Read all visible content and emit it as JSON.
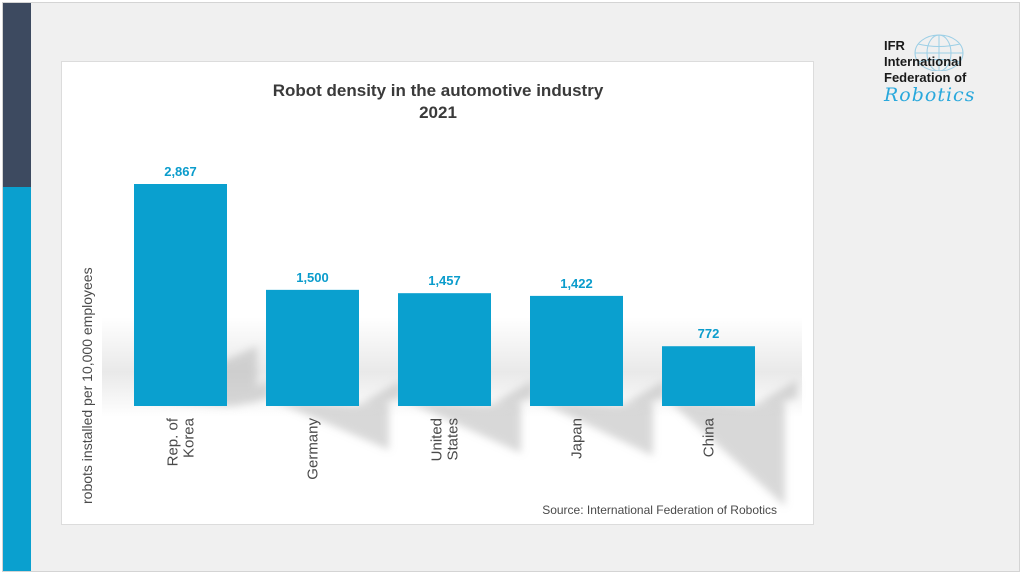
{
  "logo": {
    "abbr": "IFR",
    "line1": "International",
    "line2": "Federation of",
    "script": "Robotics"
  },
  "chart_data": {
    "type": "bar",
    "title": "Robot density in the automotive industry",
    "subtitle": "2021",
    "ylabel": "robots installed per 10,000 employees",
    "xlabel": "",
    "categories": [
      "Rep. of Korea",
      "Germany",
      "United States",
      "Japan",
      "China"
    ],
    "category_lines": [
      [
        "Rep. of",
        "Korea"
      ],
      [
        "Germany"
      ],
      [
        "United",
        "States"
      ],
      [
        "Japan"
      ],
      [
        "China"
      ]
    ],
    "values": [
      2867,
      1500,
      1457,
      1422,
      772
    ],
    "value_labels": [
      "2,867",
      "1,500",
      "1,457",
      "1,422",
      "772"
    ],
    "ylim": [
      0,
      2867
    ],
    "grid": false,
    "legend": "none",
    "bar_color": "#0aa0cf",
    "label_color": "#0a9ccc",
    "source": "Source: International  Federation of Robotics"
  },
  "colors": {
    "accent_dark": "#3d4a60",
    "accent_light": "#0aa0cf"
  }
}
